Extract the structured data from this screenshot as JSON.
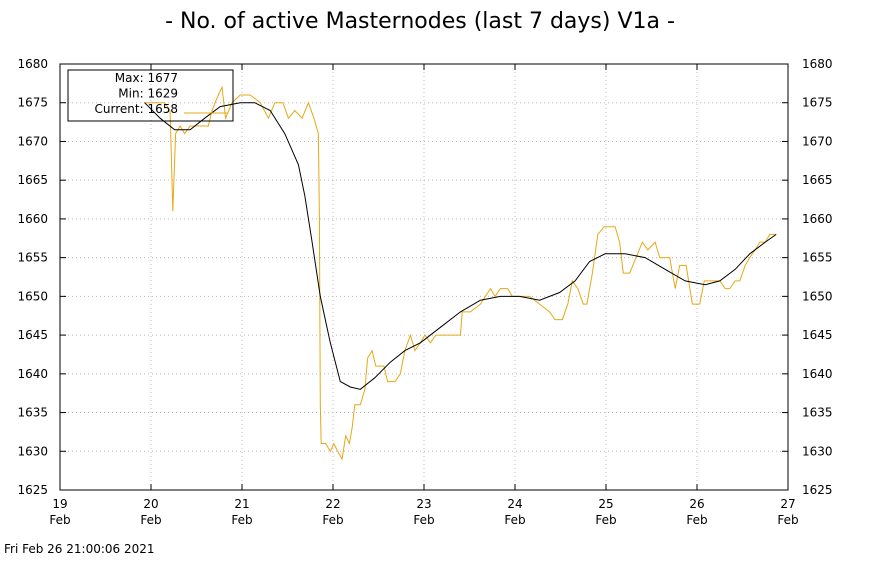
{
  "chart_data": {
    "type": "line",
    "title": "- No. of active Masternodes (last 7 days) V1a -",
    "footer": "Fri Feb 26 21:00:06 2021",
    "legend": [
      "Max: 1677",
      "Min: 1629",
      "Current: 1658"
    ],
    "xlim": [
      19,
      27
    ],
    "xticks": [
      {
        "value": 19,
        "label": "19 Feb"
      },
      {
        "value": 20,
        "label": "20 Feb"
      },
      {
        "value": 21,
        "label": "21 Feb"
      },
      {
        "value": 22,
        "label": "22 Feb"
      },
      {
        "value": 23,
        "label": "23 Feb"
      },
      {
        "value": 24,
        "label": "24 Feb"
      },
      {
        "value": 25,
        "label": "25 Feb"
      },
      {
        "value": 26,
        "label": "26 Feb"
      },
      {
        "value": 27,
        "label": "27 Feb"
      }
    ],
    "ylim": [
      1625,
      1680
    ],
    "yticks": [
      1625,
      1630,
      1635,
      1640,
      1645,
      1650,
      1655,
      1660,
      1665,
      1670,
      1675,
      1680
    ],
    "grid": true,
    "series": [
      {
        "color": "#e6a817",
        "x": [
          19.93,
          20.15,
          20.21,
          20.24,
          20.27,
          20.32,
          20.37,
          20.43,
          20.54,
          20.63,
          20.67,
          20.74,
          20.78,
          20.82,
          20.89,
          20.98,
          21.09,
          21.2,
          21.29,
          21.36,
          21.45,
          21.51,
          21.58,
          21.66,
          21.73,
          21.79,
          21.84,
          21.85,
          21.86,
          21.87,
          21.92,
          21.97,
          22.01,
          22.05,
          22.1,
          22.14,
          22.18,
          22.21,
          22.24,
          22.3,
          22.35,
          22.38,
          22.43,
          22.47,
          22.56,
          22.6,
          22.68,
          22.74,
          22.79,
          22.85,
          22.9,
          22.96,
          23.01,
          23.07,
          23.13,
          23.23,
          23.4,
          23.42,
          23.51,
          23.62,
          23.73,
          23.78,
          23.84,
          23.92,
          23.97,
          24.05,
          24.16,
          24.27,
          24.38,
          24.44,
          24.52,
          24.58,
          24.63,
          24.69,
          24.75,
          24.79,
          24.85,
          24.91,
          24.98,
          25.1,
          25.15,
          25.19,
          25.26,
          25.33,
          25.4,
          25.46,
          25.54,
          25.59,
          25.64,
          25.7,
          25.76,
          25.81,
          25.88,
          25.95,
          26.03,
          26.08,
          26.16,
          26.25,
          26.31,
          26.36,
          26.42,
          26.47,
          26.53,
          26.58,
          26.64,
          26.69,
          26.75,
          26.8,
          26.87
        ],
        "values": [
          1675,
          1675,
          1674,
          1661,
          1671,
          1672,
          1671,
          1672,
          1672,
          1672,
          1674,
          1676,
          1677,
          1673,
          1675,
          1676,
          1676,
          1675,
          1673,
          1675,
          1675,
          1673,
          1674,
          1673,
          1675,
          1673,
          1671,
          1660,
          1636,
          1631,
          1631,
          1630,
          1631,
          1630,
          1629,
          1632,
          1631,
          1633,
          1636,
          1636,
          1638,
          1642,
          1643,
          1641,
          1641,
          1639,
          1639,
          1640,
          1643,
          1645,
          1643,
          1644,
          1645,
          1644,
          1645,
          1645,
          1645,
          1648,
          1648,
          1649,
          1651,
          1650,
          1651,
          1651,
          1650,
          1650,
          1650,
          1649,
          1648,
          1647,
          1647,
          1649,
          1652,
          1651,
          1649,
          1649,
          1653,
          1658,
          1659,
          1659,
          1657,
          1653,
          1653,
          1655,
          1657,
          1656,
          1657,
          1655,
          1655,
          1655,
          1651,
          1654,
          1654,
          1649,
          1649,
          1652,
          1652,
          1652,
          1651,
          1651,
          1652,
          1652,
          1654,
          1655,
          1656,
          1657,
          1657,
          1658,
          1658
        ]
      },
      {
        "color": "#000000",
        "x": [
          19.93,
          20.1,
          20.26,
          20.43,
          20.59,
          20.76,
          20.98,
          21.14,
          21.31,
          21.47,
          21.62,
          21.69,
          21.77,
          21.86,
          21.97,
          22.08,
          22.19,
          22.3,
          22.46,
          22.63,
          22.79,
          22.96,
          23.18,
          23.4,
          23.62,
          23.84,
          24.05,
          24.27,
          24.49,
          24.66,
          24.82,
          24.99,
          25.21,
          25.43,
          25.65,
          25.87,
          26.09,
          26.25,
          26.42,
          26.58,
          26.75,
          26.87
        ],
        "values": [
          1675,
          1673,
          1671.5,
          1671.5,
          1673,
          1674.5,
          1675,
          1675,
          1674,
          1671,
          1667,
          1663,
          1657,
          1650,
          1644,
          1639,
          1638.3,
          1638,
          1639.5,
          1641.5,
          1643,
          1644,
          1646,
          1648,
          1649.5,
          1650,
          1650,
          1649.5,
          1650.5,
          1652,
          1654.5,
          1655.5,
          1655.5,
          1655,
          1653.5,
          1652,
          1651.5,
          1652,
          1653.5,
          1655.5,
          1657,
          1658
        ]
      }
    ]
  }
}
